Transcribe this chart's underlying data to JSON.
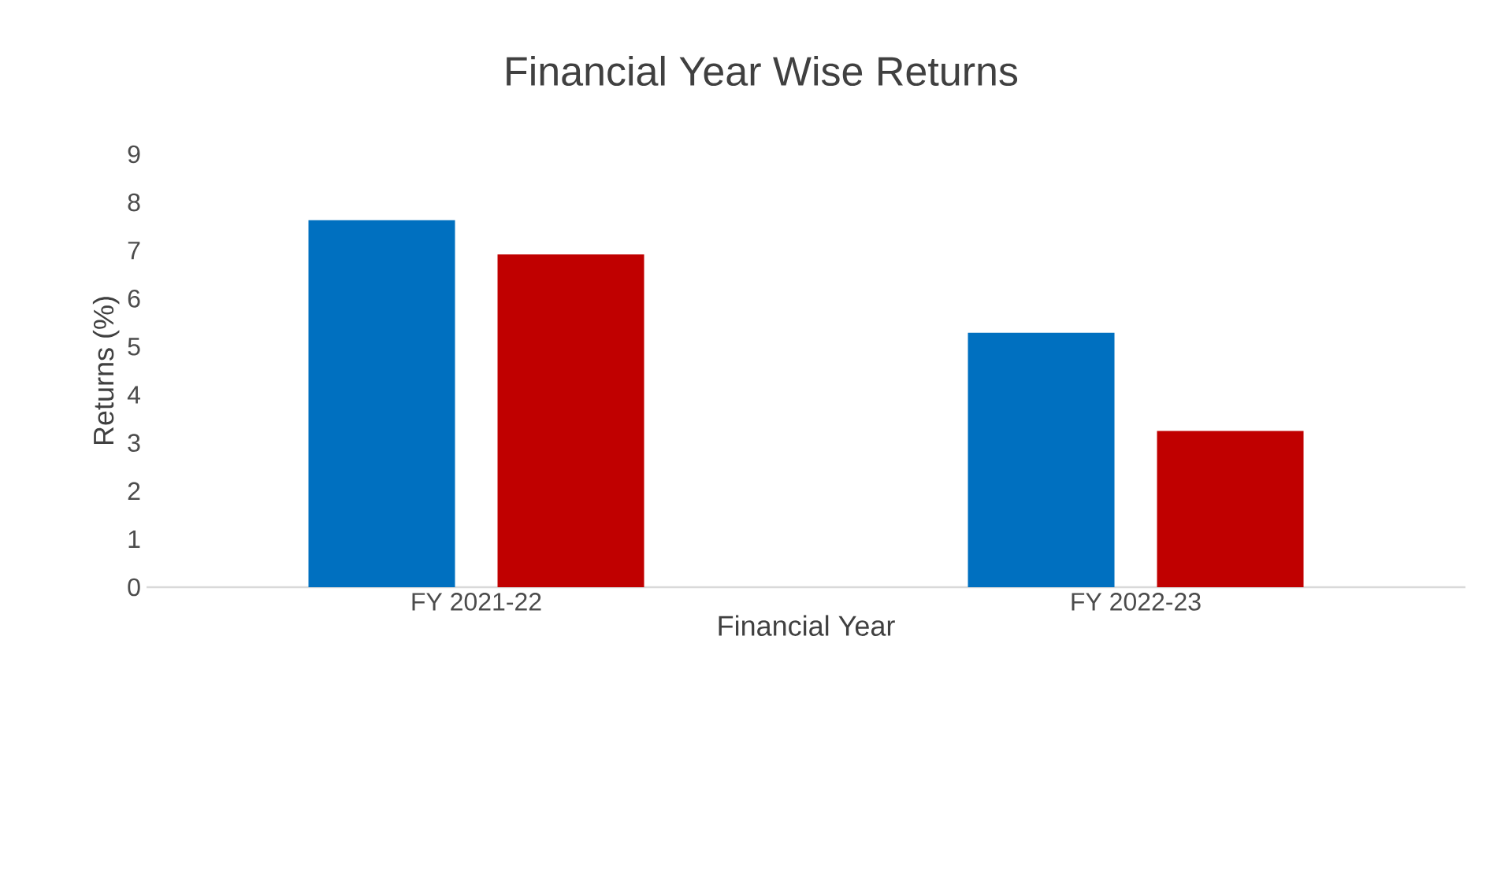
{
  "chart_data": {
    "type": "bar",
    "title": "Financial Year Wise Returns",
    "xlabel": "Financial Year",
    "ylabel": "Returns (%)",
    "categories": [
      "FY 2021-22",
      "FY 2022-23"
    ],
    "series": [
      {
        "color": "#0070c0",
        "values": [
          7.63,
          5.29
        ]
      },
      {
        "color": "#c00000",
        "values": [
          6.92,
          3.25
        ]
      }
    ],
    "ylim": [
      0,
      9
    ],
    "yticks": [
      0,
      1,
      2,
      3,
      4,
      5,
      6,
      7,
      8,
      9
    ],
    "grid": false
  }
}
